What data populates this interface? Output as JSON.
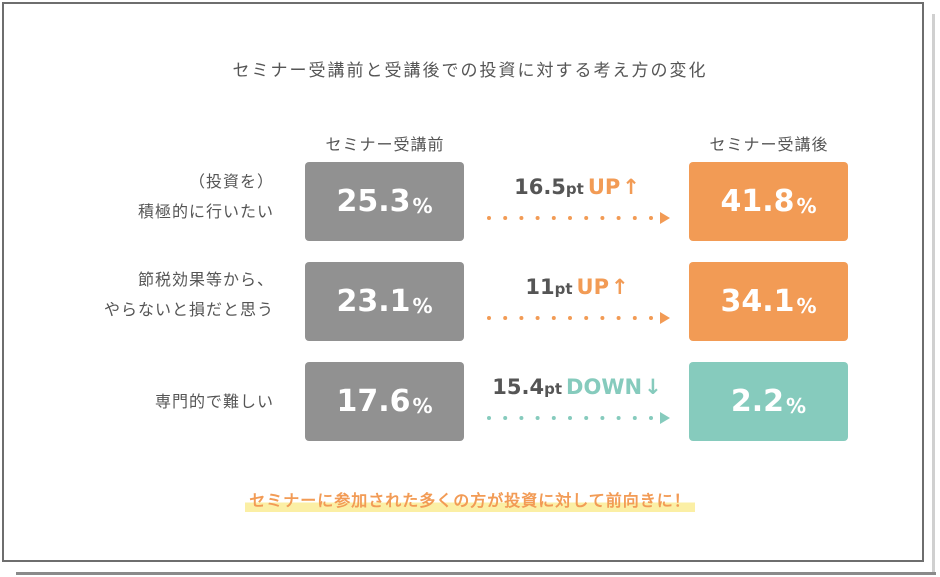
{
  "title": "セミナー受講前と受講後での投資に対する考え方の変化",
  "columns": {
    "before": "セミナー受講前",
    "after": "セミナー受講後"
  },
  "colors": {
    "before_box": "#919191",
    "up": "#f29b55",
    "down": "#86cbbd",
    "text": "#555555",
    "highlight": "#fbefa5"
  },
  "rows": [
    {
      "label_lines": [
        "（投資を）",
        "積極的に行いたい"
      ],
      "before": "25.3",
      "after": "41.8",
      "pct": "%",
      "change_amount": "16.5",
      "change_unit": "pt",
      "direction": "UP",
      "arrow": "↑"
    },
    {
      "label_lines": [
        "節税効果等から、",
        "やらないと損だと思う"
      ],
      "before": "23.1",
      "after": "34.1",
      "pct": "%",
      "change_amount": "11",
      "change_unit": "pt",
      "direction": "UP",
      "arrow": "↑"
    },
    {
      "label_lines": [
        "専門的で難しい"
      ],
      "before": "17.6",
      "after": "2.2",
      "pct": "%",
      "change_amount": "15.4",
      "change_unit": "pt",
      "direction": "DOWN",
      "arrow": "↓"
    }
  ],
  "footnote": "セミナーに参加された多くの方が投資に対して前向きに！",
  "chart_data": {
    "type": "table",
    "title": "セミナー受講前と受講後での投資に対する考え方の変化",
    "categories": [
      "（投資を）積極的に行いたい",
      "節税効果等から、やらないと損だと思う",
      "専門的で難しい"
    ],
    "series": [
      {
        "name": "セミナー受講前",
        "values": [
          25.3,
          23.1,
          17.6
        ]
      },
      {
        "name": "セミナー受講後",
        "values": [
          41.8,
          34.1,
          2.2
        ]
      }
    ],
    "changes_pt": [
      16.5,
      11,
      -15.4
    ],
    "unit": "%"
  }
}
